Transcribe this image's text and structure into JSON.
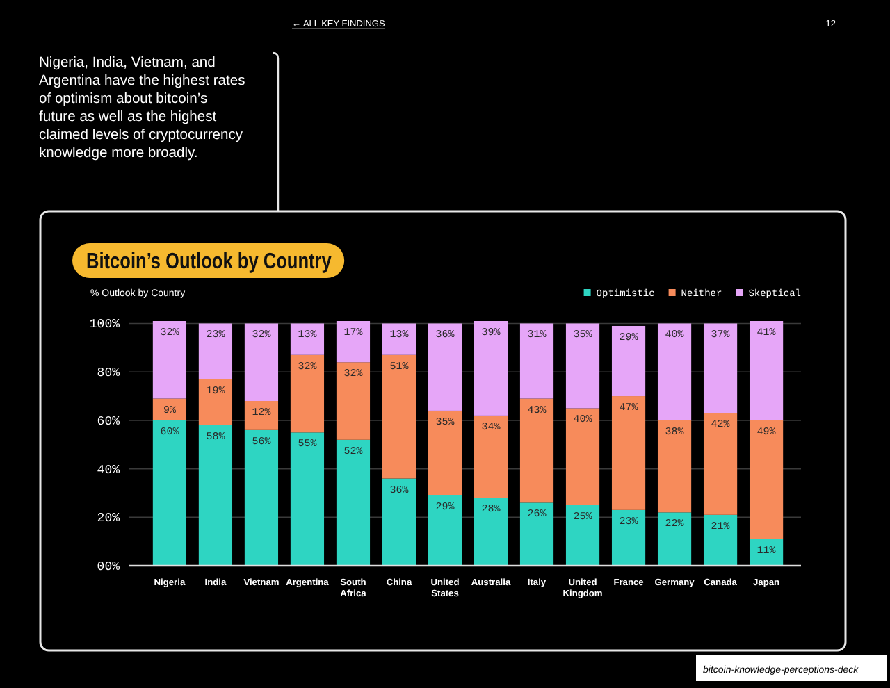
{
  "chart_data": {
    "type": "bar",
    "title": "Bitcoin’s Outlook by Country",
    "subtitle": "Nigeria, India, Vietnam, and Argentina have the highest rates of optimism about bitcoin’s future as well as the highest claimed levels of cryptocurrency knowledge more broadly.",
    "ylabel": "% Outlook by Country",
    "annotations": [
      "← ALL KEY FINDINGS",
      "12",
      "bitcoin-knowledge-perceptions-deck"
    ],
    "categories": [
      "Nigeria",
      "India",
      "Vietnam",
      "Argentina",
      "South Africa",
      "China",
      "United States",
      "Australia",
      "Italy",
      "United Kingdom",
      "France",
      "Germany",
      "Canada",
      "Japan"
    ],
    "series": [
      {
        "name": "Optimistic",
        "color": "#2ed5c2",
        "values": [
          60,
          58,
          56,
          55,
          52,
          36,
          29,
          28,
          26,
          25,
          23,
          22,
          21,
          11
        ],
        "value_labels": [
          "60%",
          "58%",
          "56%",
          "55%",
          "52%",
          "36%",
          "29%",
          "28%",
          "26%",
          "25%",
          "23%",
          "22%",
          "21%",
          "11%"
        ]
      },
      {
        "name": "Neither",
        "color": "#f78b5b",
        "values": [
          9,
          19,
          12,
          32,
          32,
          51,
          35,
          34,
          43,
          40,
          47,
          38,
          42,
          49
        ],
        "value_labels": [
          "9%",
          "19%",
          "12%",
          "32%",
          "32%",
          "51%",
          "35%",
          "34%",
          "43%",
          "40%",
          "47%",
          "38%",
          "42%",
          "49%"
        ]
      },
      {
        "name": "Skeptical",
        "color": "#e6a6f8",
        "values": [
          32,
          23,
          32,
          13,
          17,
          13,
          36,
          39,
          31,
          35,
          29,
          40,
          37,
          41
        ],
        "value_labels": [
          "32%",
          "23%",
          "32%",
          "13%",
          "17%",
          "13%",
          "36%",
          "39%",
          "31%",
          "35%",
          "29%",
          "40%",
          "37%",
          "41%"
        ]
      }
    ],
    "stacked": true,
    "ylim": [
      0,
      101
    ],
    "yticks": [
      {
        "value": 0,
        "label": "00%"
      },
      {
        "value": 20,
        "label": "20%"
      },
      {
        "value": 40,
        "label": "40%"
      },
      {
        "value": 60,
        "label": "60%"
      },
      {
        "value": 80,
        "label": "80%"
      },
      {
        "value": 100,
        "label": "100%"
      }
    ],
    "grid": "y",
    "legend": "top right"
  }
}
